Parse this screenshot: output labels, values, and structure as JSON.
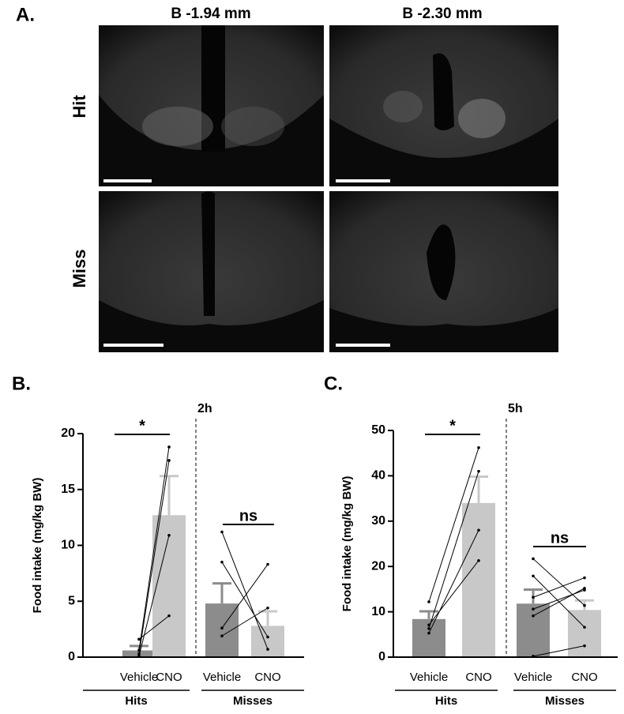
{
  "panel_a": {
    "label": "A.",
    "columns": [
      "B -1.94 mm",
      "B -2.30 mm"
    ],
    "rows": [
      "Hit",
      "Miss"
    ]
  },
  "chart_data": [
    {
      "type": "bar",
      "panel": "B.",
      "title": "2h",
      "y_label": "Food intake (mg/kg BW)",
      "categories": [
        "Vehicle",
        "CNO",
        "Vehicle",
        "CNO"
      ],
      "groups": [
        "Hits",
        "Misses"
      ],
      "values": [
        0.6,
        12.7,
        4.8,
        2.8
      ],
      "errors": [
        0.4,
        3.5,
        1.8,
        1.3
      ],
      "colors": [
        "#8c8c8c",
        "#c8c8c8",
        "#8c8c8c",
        "#c8c8c8"
      ],
      "paired": [
        [
          [
            1.6,
            3.7
          ],
          [
            0.6,
            18.8
          ],
          [
            0.3,
            17.6
          ],
          [
            0.1,
            10.9
          ]
        ],
        [
          [
            11.2,
            0.7
          ],
          [
            8.5,
            1.8
          ],
          [
            2.6,
            8.3
          ],
          [
            1.9,
            4.4
          ]
        ]
      ],
      "annotations": [
        "*",
        "ns"
      ],
      "ylim": [
        0,
        20
      ],
      "yticks": [
        0,
        5,
        10,
        15,
        20
      ]
    },
    {
      "type": "bar",
      "panel": "C.",
      "title": "5h",
      "y_label": "Food intake (mg/kg BW)",
      "categories": [
        "Vehicle",
        "CNO",
        "Vehicle",
        "CNO"
      ],
      "groups": [
        "Hits",
        "Misses"
      ],
      "values": [
        8.4,
        34,
        11.8,
        10.4
      ],
      "errors": [
        1.7,
        5.8,
        3.1,
        2.1
      ],
      "colors": [
        "#8c8c8c",
        "#c8c8c8",
        "#8c8c8c",
        "#c8c8c8"
      ],
      "paired": [
        [
          [
            12.2,
            46.2
          ],
          [
            6.3,
            41
          ],
          [
            5.3,
            28
          ],
          [
            7.1,
            21.3
          ]
        ],
        [
          [
            21.7,
            11.4
          ],
          [
            17.9,
            6.6
          ],
          [
            13.2,
            17.5
          ],
          [
            10.6,
            14.8
          ],
          [
            9.1,
            15.2
          ],
          [
            0.2,
            2.5
          ]
        ]
      ],
      "annotations": [
        "*",
        "ns"
      ],
      "ylim": [
        0,
        50
      ],
      "yticks": [
        0,
        10,
        20,
        30,
        40,
        50
      ]
    }
  ]
}
